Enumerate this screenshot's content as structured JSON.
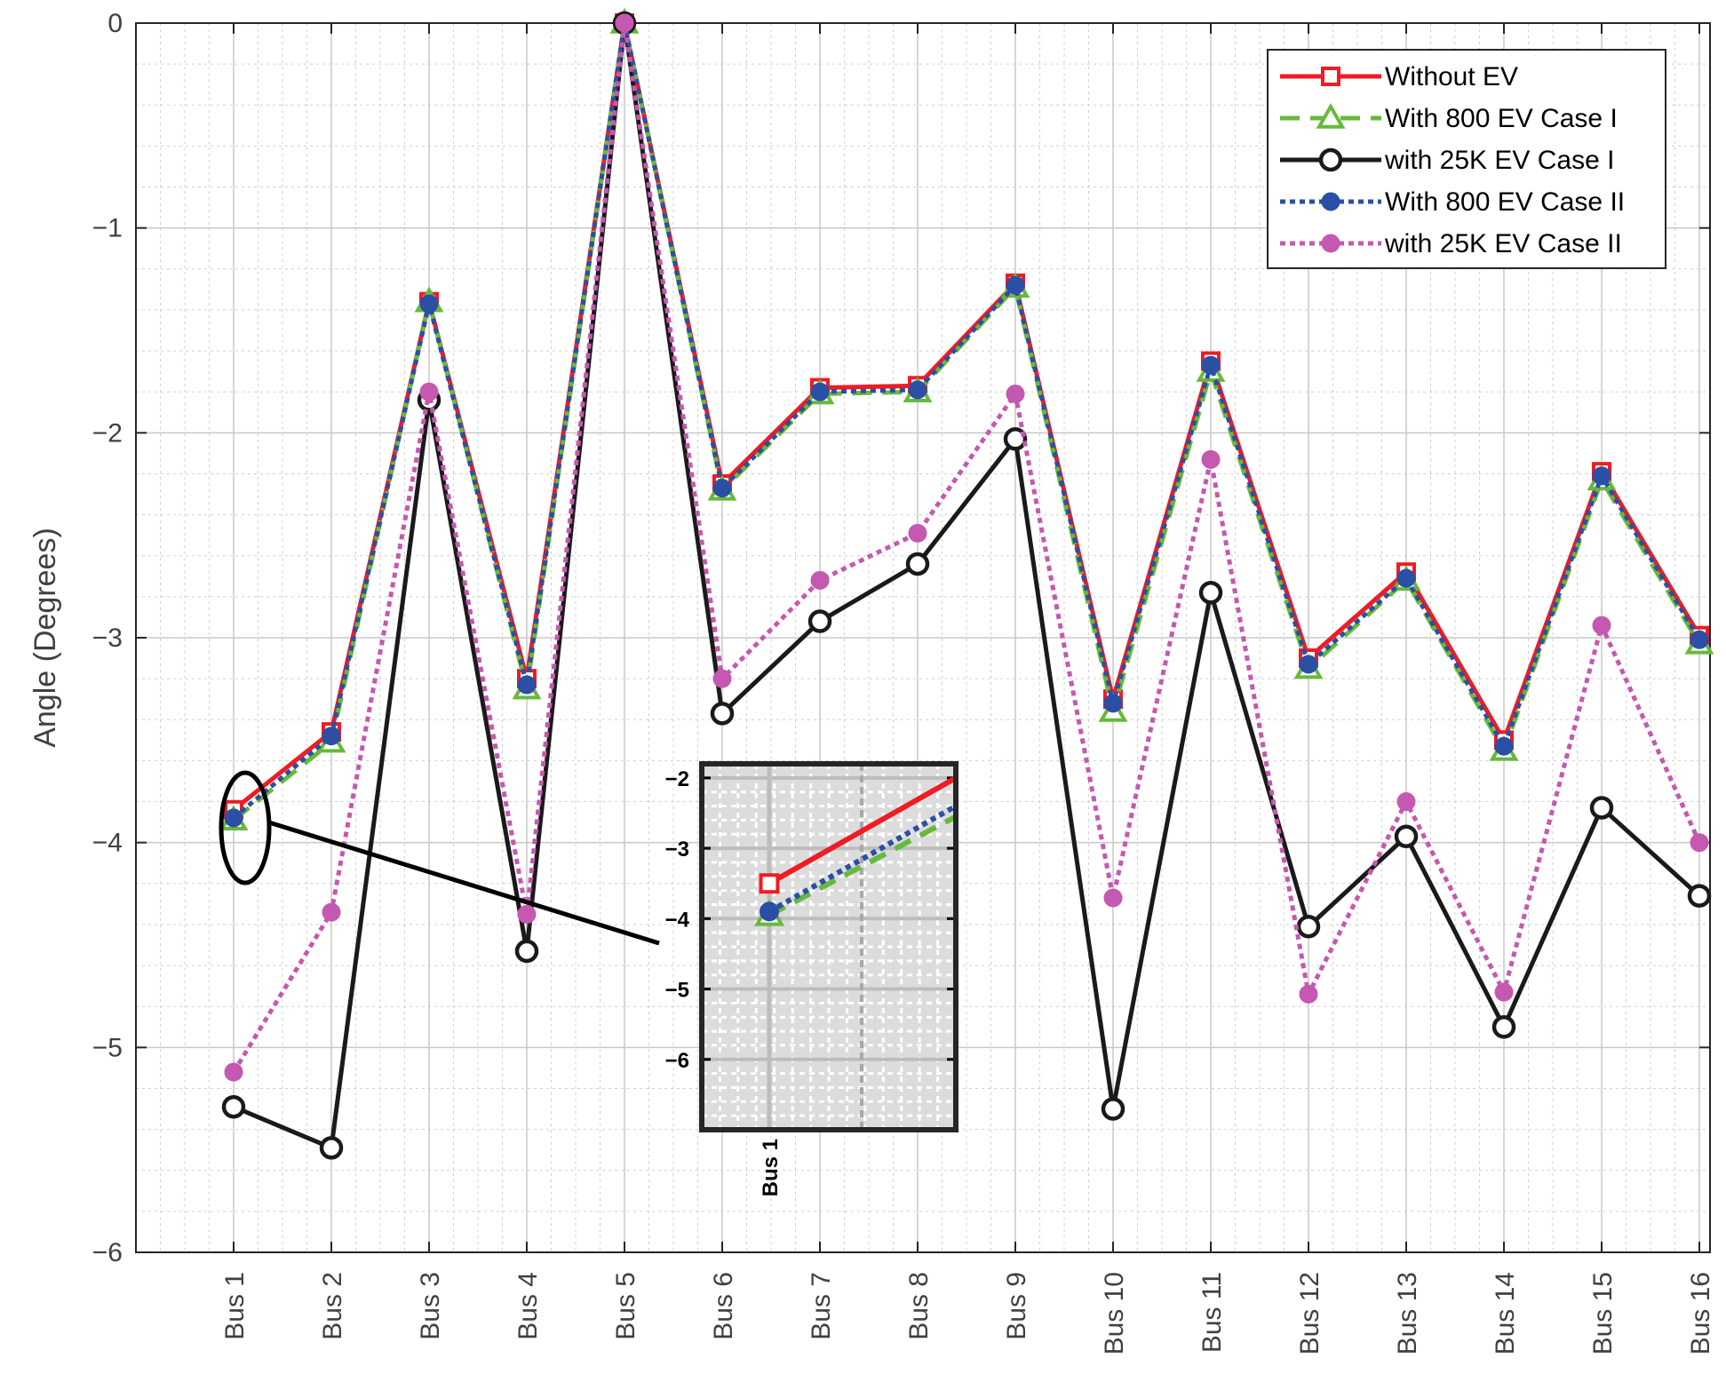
{
  "chart_data": [
    {
      "type": "line",
      "title": "",
      "xlabel": "",
      "ylabel": "Angle (Degrees)",
      "categories": [
        "Bus 1",
        "Bus 2",
        "Bus 3",
        "Bus 4",
        "Bus 5",
        "Bus 6",
        "Bus 7",
        "Bus 8",
        "Bus 9",
        "Bus 10",
        "Bus 11",
        "Bus 12",
        "Bus 13",
        "Bus 14",
        "Bus 15",
        "Bus 16"
      ],
      "ylim": [
        -6,
        0
      ],
      "yticks": [
        "0",
        "−1",
        "−2",
        "−3",
        "−4",
        "−5",
        "−6"
      ],
      "grid": true,
      "minor_grid": true,
      "legend_position": "top-right",
      "series": [
        {
          "name": "Without EV",
          "color": "#ee1c24",
          "style": "solid",
          "marker": "square",
          "values": [
            -3.84,
            -3.46,
            -1.36,
            -3.2,
            0,
            -2.25,
            -1.78,
            -1.77,
            -1.27,
            -3.3,
            -1.65,
            -3.1,
            -2.68,
            -3.5,
            -2.19,
            -2.99
          ]
        },
        {
          "name": "With 800 EV Case I",
          "color": "#67b93c",
          "style": "dashed",
          "marker": "triangle",
          "values": [
            -3.89,
            -3.51,
            -1.36,
            -3.25,
            0,
            -2.28,
            -1.81,
            -1.8,
            -1.29,
            -3.36,
            -1.7,
            -3.15,
            -2.72,
            -3.55,
            -2.23,
            -3.03
          ]
        },
        {
          "name": "with 25K EV Case I",
          "color": "#1a1a1a",
          "style": "solid",
          "marker": "circle",
          "values": [
            -5.29,
            -5.49,
            -1.84,
            -4.53,
            0,
            -3.37,
            -2.92,
            -2.64,
            -2.03,
            -5.3,
            -2.78,
            -4.41,
            -3.97,
            -4.9,
            -3.83,
            -4.26
          ]
        },
        {
          "name": "With 800 EV Case II",
          "color": "#2b4fa5",
          "style": "dotted",
          "marker": "dot",
          "values": [
            -3.88,
            -3.48,
            -1.37,
            -3.23,
            0,
            -2.27,
            -1.8,
            -1.79,
            -1.28,
            -3.32,
            -1.67,
            -3.13,
            -2.71,
            -3.53,
            -2.21,
            -3.01
          ]
        },
        {
          "name": "with 25K EV Case II",
          "color": "#c558b0",
          "style": "dotted",
          "marker": "dot",
          "values": [
            -5.12,
            -4.34,
            -1.8,
            -4.35,
            0,
            -3.2,
            -2.72,
            -2.49,
            -1.81,
            -4.27,
            -2.13,
            -4.74,
            -3.8,
            -4.73,
            -2.94,
            -4.0
          ]
        }
      ]
    },
    {
      "type": "line",
      "title": "",
      "xlabel": "",
      "ylabel": "",
      "categories": [
        "Bus 1"
      ],
      "yticks": [
        "−2",
        "−3",
        "−4",
        "−5",
        "−6"
      ],
      "ylim": [
        -7,
        -1.8
      ],
      "xlim": [
        0,
        1.8
      ],
      "grid": true,
      "series": [
        {
          "name": "Without EV",
          "color": "#ee1c24",
          "x": [
            0,
            1.8
          ],
          "values": [
            -3.5,
            -2.0
          ]
        },
        {
          "name": "With 800 EV Case I",
          "color": "#67b93c",
          "x": [
            0,
            1.8
          ],
          "values": [
            -3.95,
            -2.55
          ]
        },
        {
          "name": "With 800 EV Case II",
          "color": "#2b4fa5",
          "x": [
            0,
            1.8
          ],
          "values": [
            -3.9,
            -2.4
          ]
        }
      ]
    }
  ]
}
